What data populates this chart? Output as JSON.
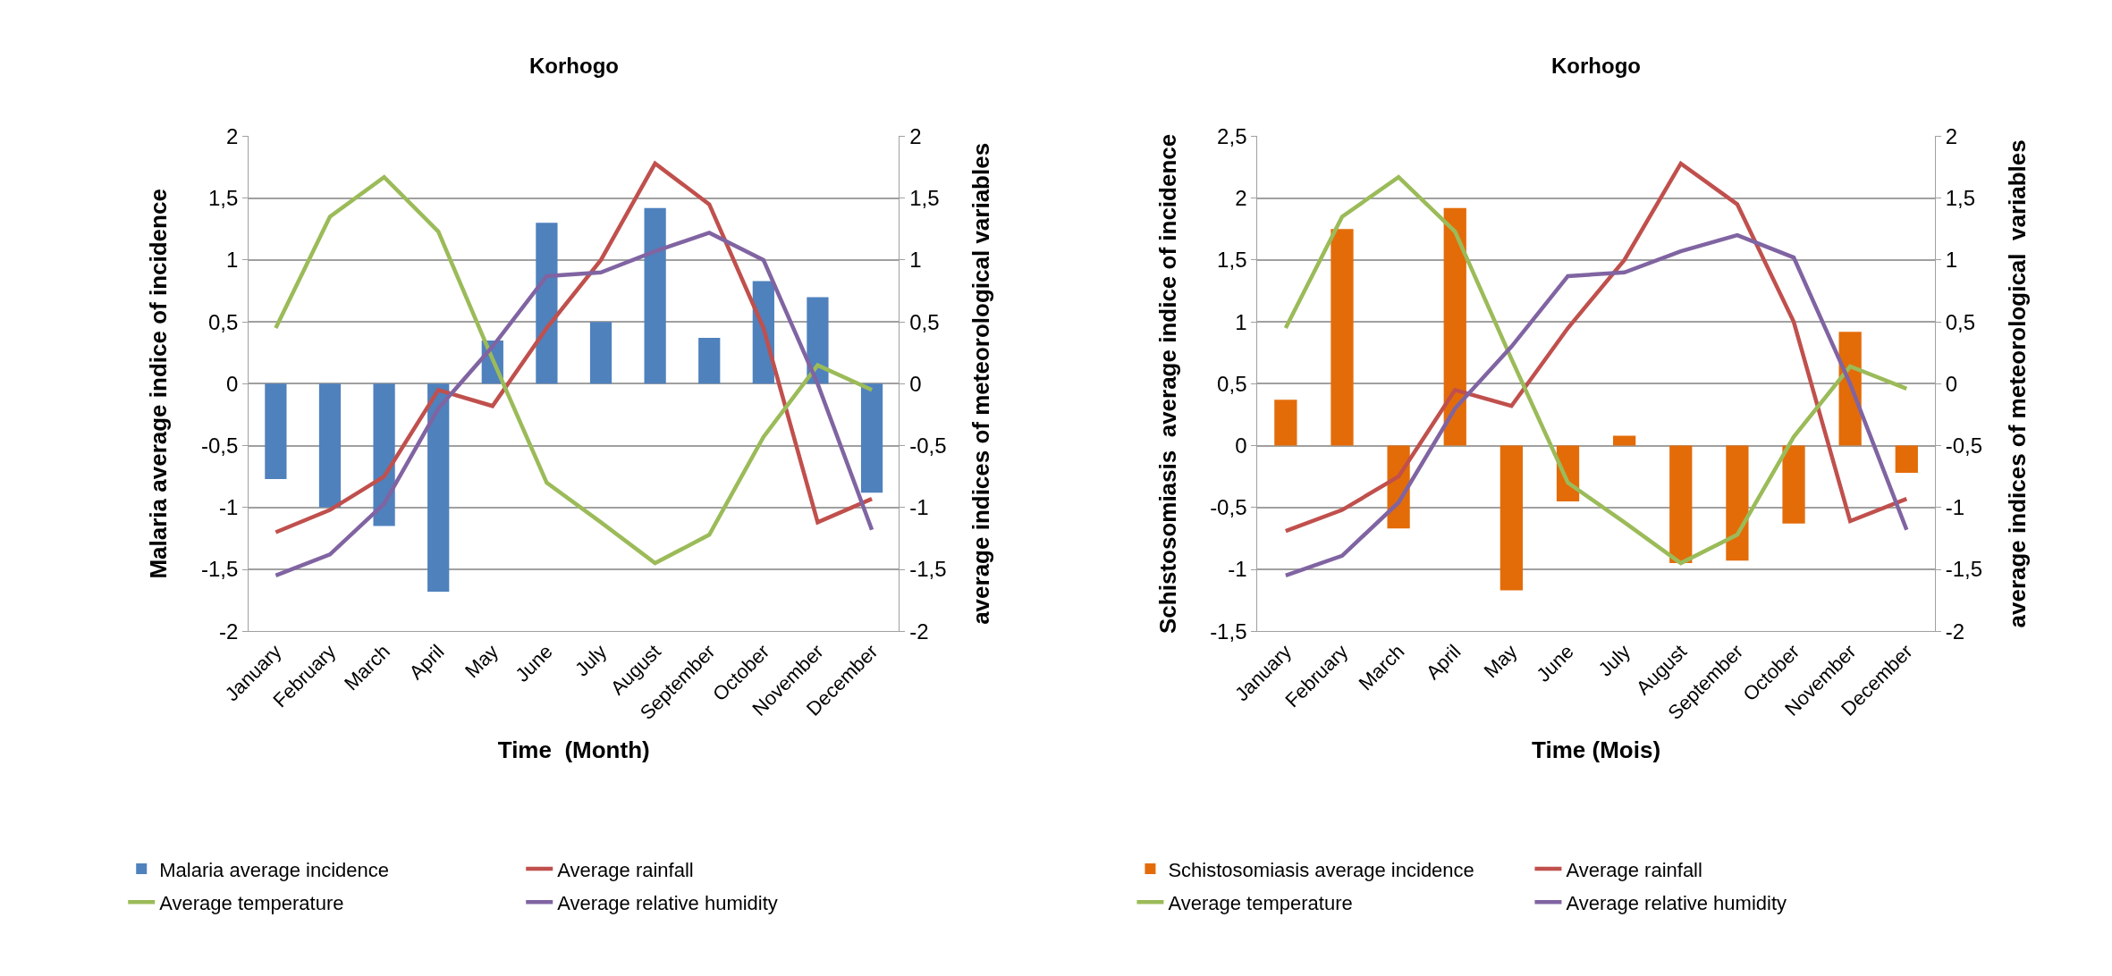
{
  "chart_data": [
    {
      "type": "bar",
      "title": "Korhogo",
      "xlabel": "Time  (Month)",
      "ylabel": "Malaria average indice of incidence",
      "y2label": "average indices of meteorological variables",
      "categories": [
        "January",
        "February",
        "March",
        "April",
        "May",
        "June",
        "July",
        "August",
        "September",
        "October",
        "November",
        "December"
      ],
      "series": [
        {
          "name": "Malaria average incidence",
          "color": "#4f81bd",
          "values": [
            -0.77,
            -1.0,
            -1.15,
            -1.68,
            0.35,
            1.3,
            0.5,
            1.42,
            0.37,
            0.83,
            0.7,
            -0.88
          ]
        },
        {
          "name": "Average rainfall",
          "type": "line",
          "axis": "y2",
          "color": "#c0504d",
          "values": [
            -1.2,
            -1.02,
            -0.75,
            -0.05,
            -0.18,
            0.45,
            1.0,
            1.78,
            1.45,
            0.45,
            -1.12,
            -0.93
          ]
        },
        {
          "name": "Average temperature",
          "type": "line",
          "axis": "y2",
          "color": "#9bbb59",
          "values": [
            0.45,
            1.35,
            1.67,
            1.23,
            0.2,
            -0.8,
            -1.12,
            -1.45,
            -1.22,
            -0.43,
            0.15,
            -0.05
          ]
        },
        {
          "name": "Average relative humidity",
          "type": "line",
          "axis": "y2",
          "color": "#8064a2",
          "values": [
            -1.55,
            -1.38,
            -0.97,
            -0.2,
            0.3,
            0.87,
            0.9,
            1.07,
            1.22,
            1.0,
            0.0,
            -1.18
          ]
        }
      ],
      "ylim": [
        -2,
        2
      ],
      "yticks": [
        -2,
        {
          "value": -1.5,
          "label": "-1,5"
        },
        -1,
        {
          "value": -0.5,
          "label": "-0,5"
        },
        0,
        {
          "value": 0.5,
          "label": "0,5"
        },
        1,
        {
          "value": 1.5,
          "label": "1,5"
        },
        2
      ],
      "y2lim": [
        -2,
        2
      ],
      "y2ticks": [
        -2,
        {
          "value": -1.5,
          "label": "-1,5"
        },
        -1,
        {
          "value": -0.5,
          "label": "-0,5"
        },
        0,
        {
          "value": 0.5,
          "label": "0,5"
        },
        1,
        {
          "value": 1.5,
          "label": "1,5"
        },
        2
      ],
      "grid": "y",
      "legend": "bottom",
      "marker": "none",
      "line_style": "solid"
    },
    {
      "type": "bar",
      "title": "Korhogo",
      "xlabel": "Time (Mois)",
      "ylabel": "Schistosomiasis  average indice of incidence",
      "y2label": "average indices of meteorological  variables",
      "categories": [
        "January",
        "February",
        "March",
        "April",
        "May",
        "June",
        "July",
        "August",
        "September",
        "October",
        "November",
        "December"
      ],
      "series": [
        {
          "name": "Schistosomiasis average incidence",
          "color": "#e36c09",
          "values": [
            0.37,
            1.75,
            -0.67,
            1.92,
            -1.17,
            -0.45,
            0.08,
            -0.95,
            -0.93,
            -0.63,
            0.92,
            -0.22
          ]
        },
        {
          "name": "Average rainfall",
          "type": "line",
          "axis": "y2",
          "color": "#c0504d",
          "values": [
            -1.19,
            -1.02,
            -0.75,
            -0.05,
            -0.18,
            0.45,
            1.0,
            1.78,
            1.45,
            0.5,
            -1.11,
            -0.93
          ]
        },
        {
          "name": "Average temperature",
          "type": "line",
          "axis": "y2",
          "color": "#9bbb59",
          "values": [
            0.45,
            1.35,
            1.67,
            1.23,
            0.2,
            -0.8,
            -1.12,
            -1.45,
            -1.22,
            -0.43,
            0.14,
            -0.04
          ]
        },
        {
          "name": "Average relative humidity",
          "type": "line",
          "axis": "y2",
          "color": "#8064a2",
          "values": [
            -1.55,
            -1.39,
            -0.96,
            -0.2,
            0.3,
            0.87,
            0.9,
            1.07,
            1.2,
            1.02,
            0.0,
            -1.18
          ]
        }
      ],
      "ylim": [
        -1.5,
        2.5
      ],
      "yticks": [
        {
          "value": -1.5,
          "label": "-1,5"
        },
        -1,
        {
          "value": -0.5,
          "label": "-0,5"
        },
        0,
        {
          "value": 0.5,
          "label": "0,5"
        },
        1,
        {
          "value": 1.5,
          "label": "1,5"
        },
        2,
        {
          "value": 2.5,
          "label": "2,5"
        }
      ],
      "y2lim": [
        -2,
        2
      ],
      "y2ticks": [
        -2,
        {
          "value": -1.5,
          "label": "-1,5"
        },
        -1,
        {
          "value": -0.5,
          "label": "-0,5"
        },
        0,
        {
          "value": 0.5,
          "label": "0,5"
        },
        1,
        {
          "value": 1.5,
          "label": "1,5"
        },
        2
      ],
      "grid": "y",
      "legend": "bottom",
      "marker": "none",
      "line_style": "solid"
    }
  ]
}
